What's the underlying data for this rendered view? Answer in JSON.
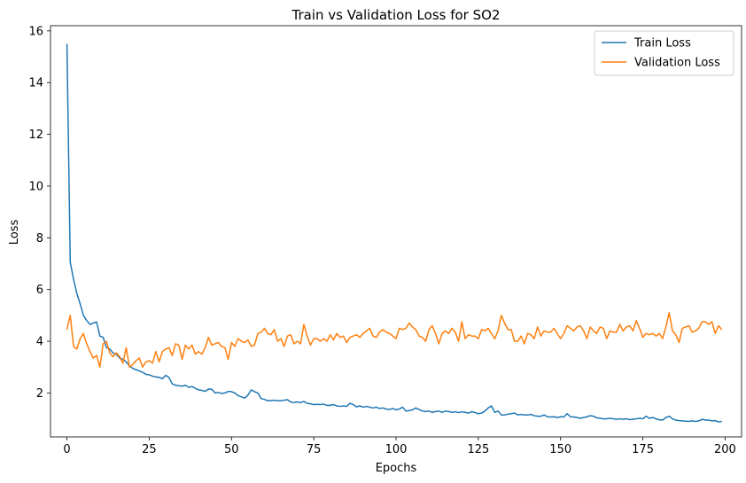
{
  "chart_data": {
    "type": "line",
    "title": "Train vs Validation Loss for SO2",
    "xlabel": "Epochs",
    "ylabel": "Loss",
    "xlim": [
      -5,
      205
    ],
    "ylim": [
      0.3,
      16.2
    ],
    "xticks": [
      0,
      25,
      50,
      75,
      100,
      125,
      150,
      175,
      200
    ],
    "yticks": [
      2,
      4,
      6,
      8,
      10,
      12,
      14,
      16
    ],
    "grid": false,
    "legend_position": "top-right",
    "series": [
      {
        "name": "Train Loss",
        "color": "#1f77b4",
        "x": [
          0,
          1,
          2,
          3,
          4,
          5,
          6,
          7,
          8,
          9,
          10,
          11,
          12,
          13,
          14,
          15,
          16,
          17,
          18,
          19,
          20,
          21,
          22,
          23,
          24,
          25,
          26,
          27,
          28,
          29,
          30,
          31,
          32,
          33,
          34,
          35,
          36,
          37,
          38,
          39,
          40,
          41,
          42,
          43,
          44,
          45,
          46,
          47,
          48,
          49,
          50,
          51,
          52,
          53,
          54,
          55,
          56,
          57,
          58,
          59,
          60,
          61,
          62,
          63,
          64,
          65,
          66,
          67,
          68,
          69,
          70,
          71,
          72,
          73,
          74,
          75,
          76,
          77,
          78,
          79,
          80,
          81,
          82,
          83,
          84,
          85,
          86,
          87,
          88,
          89,
          90,
          91,
          92,
          93,
          94,
          95,
          96,
          97,
          98,
          99,
          100,
          101,
          102,
          103,
          104,
          105,
          106,
          107,
          108,
          109,
          110,
          111,
          112,
          113,
          114,
          115,
          116,
          117,
          118,
          119,
          120,
          121,
          122,
          123,
          124,
          125,
          126,
          127,
          128,
          129,
          130,
          131,
          132,
          133,
          134,
          135,
          136,
          137,
          138,
          139,
          140,
          141,
          142,
          143,
          144,
          145,
          146,
          147,
          148,
          149,
          150,
          151,
          152,
          153,
          154,
          155,
          156,
          157,
          158,
          159,
          160,
          161,
          162,
          163,
          164,
          165,
          166,
          167,
          168,
          169,
          170,
          171,
          172,
          173,
          174,
          175,
          176,
          177,
          178,
          179,
          180,
          181,
          182,
          183,
          184,
          185,
          186,
          187,
          188,
          189,
          190,
          191,
          192,
          193,
          194,
          195,
          196,
          197,
          198,
          199
        ],
        "values": [
          15.5,
          7.05,
          6.4,
          5.85,
          5.45,
          5.0,
          4.8,
          4.65,
          4.7,
          4.75,
          4.2,
          4.15,
          3.75,
          3.7,
          3.55,
          3.5,
          3.35,
          3.3,
          3.2,
          3.05,
          2.95,
          2.9,
          2.85,
          2.8,
          2.72,
          2.7,
          2.65,
          2.62,
          2.6,
          2.55,
          2.68,
          2.6,
          2.35,
          2.3,
          2.28,
          2.26,
          2.3,
          2.22,
          2.25,
          2.18,
          2.12,
          2.1,
          2.06,
          2.15,
          2.14,
          2.0,
          2.02,
          1.98,
          2.0,
          2.06,
          2.05,
          2.0,
          1.9,
          1.85,
          1.8,
          1.92,
          2.12,
          2.05,
          2.0,
          1.78,
          1.75,
          1.7,
          1.7,
          1.72,
          1.7,
          1.7,
          1.72,
          1.74,
          1.65,
          1.63,
          1.65,
          1.63,
          1.67,
          1.6,
          1.58,
          1.55,
          1.56,
          1.55,
          1.57,
          1.52,
          1.52,
          1.55,
          1.5,
          1.48,
          1.5,
          1.48,
          1.6,
          1.55,
          1.46,
          1.5,
          1.45,
          1.48,
          1.45,
          1.42,
          1.45,
          1.4,
          1.42,
          1.38,
          1.36,
          1.4,
          1.35,
          1.38,
          1.45,
          1.3,
          1.32,
          1.35,
          1.42,
          1.36,
          1.3,
          1.28,
          1.3,
          1.25,
          1.28,
          1.3,
          1.25,
          1.3,
          1.28,
          1.25,
          1.27,
          1.24,
          1.27,
          1.25,
          1.22,
          1.28,
          1.24,
          1.2,
          1.22,
          1.3,
          1.42,
          1.5,
          1.25,
          1.3,
          1.15,
          1.15,
          1.18,
          1.2,
          1.22,
          1.15,
          1.17,
          1.15,
          1.15,
          1.17,
          1.12,
          1.1,
          1.1,
          1.15,
          1.08,
          1.07,
          1.08,
          1.05,
          1.08,
          1.07,
          1.2,
          1.08,
          1.07,
          1.05,
          1.02,
          1.05,
          1.08,
          1.12,
          1.1,
          1.04,
          1.02,
          1.0,
          1.0,
          1.02,
          1.0,
          0.98,
          1.0,
          0.98,
          1.0,
          0.97,
          0.98,
          1.0,
          1.02,
          1.0,
          1.1,
          1.02,
          1.05,
          1.0,
          0.96,
          0.95,
          1.05,
          1.1,
          1.0,
          0.95,
          0.93,
          0.92,
          0.91,
          0.9,
          0.92,
          0.9,
          0.92,
          0.98,
          0.95,
          0.95,
          0.92,
          0.93,
          0.88,
          0.9
        ]
      },
      {
        "name": "Validation Loss",
        "color": "#ff7f0e",
        "x": [
          0,
          1,
          2,
          3,
          4,
          5,
          6,
          7,
          8,
          9,
          10,
          11,
          12,
          13,
          14,
          15,
          16,
          17,
          18,
          19,
          20,
          21,
          22,
          23,
          24,
          25,
          26,
          27,
          28,
          29,
          30,
          31,
          32,
          33,
          34,
          35,
          36,
          37,
          38,
          39,
          40,
          41,
          42,
          43,
          44,
          45,
          46,
          47,
          48,
          49,
          50,
          51,
          52,
          53,
          54,
          55,
          56,
          57,
          58,
          59,
          60,
          61,
          62,
          63,
          64,
          65,
          66,
          67,
          68,
          69,
          70,
          71,
          72,
          73,
          74,
          75,
          76,
          77,
          78,
          79,
          80,
          81,
          82,
          83,
          84,
          85,
          86,
          87,
          88,
          89,
          90,
          91,
          92,
          93,
          94,
          95,
          96,
          97,
          98,
          99,
          100,
          101,
          102,
          103,
          104,
          105,
          106,
          107,
          108,
          109,
          110,
          111,
          112,
          113,
          114,
          115,
          116,
          117,
          118,
          119,
          120,
          121,
          122,
          123,
          124,
          125,
          126,
          127,
          128,
          129,
          130,
          131,
          132,
          133,
          134,
          135,
          136,
          137,
          138,
          139,
          140,
          141,
          142,
          143,
          144,
          145,
          146,
          147,
          148,
          149,
          150,
          151,
          152,
          153,
          154,
          155,
          156,
          157,
          158,
          159,
          160,
          161,
          162,
          163,
          164,
          165,
          166,
          167,
          168,
          169,
          170,
          171,
          172,
          173,
          174,
          175,
          176,
          177,
          178,
          179,
          180,
          181,
          182,
          183,
          184,
          185,
          186,
          187,
          188,
          189,
          190,
          191,
          192,
          193,
          194,
          195,
          196,
          197,
          198,
          199
        ],
        "values": [
          4.45,
          5.0,
          3.8,
          3.7,
          4.1,
          4.3,
          3.9,
          3.6,
          3.35,
          3.45,
          3.0,
          3.9,
          4.0,
          3.55,
          3.4,
          3.55,
          3.4,
          3.15,
          3.75,
          3.0,
          3.1,
          3.25,
          3.35,
          3.0,
          3.2,
          3.25,
          3.15,
          3.6,
          3.2,
          3.6,
          3.7,
          3.75,
          3.45,
          3.9,
          3.85,
          3.3,
          3.85,
          3.7,
          3.85,
          3.5,
          3.6,
          3.5,
          3.75,
          4.15,
          3.85,
          3.9,
          3.95,
          3.8,
          3.75,
          3.3,
          3.95,
          3.8,
          4.1,
          4.0,
          3.95,
          4.05,
          3.8,
          3.85,
          4.3,
          4.35,
          4.5,
          4.3,
          4.25,
          4.45,
          4.0,
          4.1,
          3.8,
          4.2,
          4.25,
          3.9,
          4.0,
          3.9,
          4.65,
          4.2,
          3.85,
          4.1,
          4.1,
          4.0,
          4.1,
          4.0,
          4.25,
          4.05,
          4.3,
          4.15,
          4.2,
          3.95,
          4.15,
          4.2,
          4.25,
          4.15,
          4.3,
          4.4,
          4.5,
          4.2,
          4.15,
          4.35,
          4.45,
          4.35,
          4.3,
          4.2,
          4.1,
          4.5,
          4.45,
          4.5,
          4.7,
          4.55,
          4.45,
          4.2,
          4.15,
          4.0,
          4.45,
          4.6,
          4.3,
          3.9,
          4.3,
          4.4,
          4.3,
          4.5,
          4.35,
          4.0,
          4.75,
          4.1,
          4.25,
          4.2,
          4.2,
          4.1,
          4.45,
          4.4,
          4.5,
          4.3,
          4.1,
          4.4,
          5.0,
          4.7,
          4.45,
          4.45,
          4.0,
          4.0,
          4.2,
          3.9,
          4.3,
          4.25,
          4.1,
          4.55,
          4.2,
          4.4,
          4.35,
          4.35,
          4.5,
          4.3,
          4.1,
          4.3,
          4.6,
          4.5,
          4.4,
          4.55,
          4.6,
          4.4,
          4.1,
          4.55,
          4.4,
          4.3,
          4.55,
          4.5,
          4.1,
          4.4,
          4.35,
          4.35,
          4.65,
          4.4,
          4.55,
          4.6,
          4.4,
          4.8,
          4.5,
          4.15,
          4.3,
          4.25,
          4.3,
          4.2,
          4.3,
          4.1,
          4.55,
          5.1,
          4.4,
          4.25,
          3.95,
          4.5,
          4.55,
          4.6,
          4.35,
          4.4,
          4.5,
          4.75,
          4.75,
          4.65,
          4.75,
          4.3,
          4.6,
          4.45
        ]
      }
    ]
  }
}
